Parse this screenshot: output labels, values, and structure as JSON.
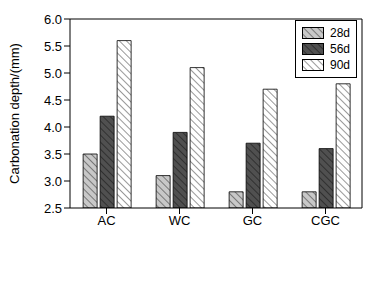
{
  "chart_data": {
    "type": "bar",
    "categories": [
      "AC",
      "WC",
      "GC",
      "CGC"
    ],
    "series": [
      {
        "name": "28d",
        "color": "#c8c8c8",
        "values": [
          3.5,
          3.1,
          2.8,
          2.8
        ]
      },
      {
        "name": "56d",
        "color": "#505050",
        "values": [
          4.2,
          3.9,
          3.7,
          3.6
        ]
      },
      {
        "name": "90d",
        "color": "#ffffff",
        "values": [
          5.6,
          5.1,
          4.7,
          4.8
        ]
      }
    ],
    "y_label": "Carbonation depth/(mm)",
    "ylim": [
      2.5,
      6.0
    ],
    "yticks": [
      2.5,
      {
        "value": 3,
        "label": "3.0"
      },
      3.5,
      {
        "value": 4,
        "label": "4.0"
      },
      4.5,
      {
        "value": 5,
        "label": "5.0"
      },
      5.5,
      {
        "value": 6,
        "label": "6.0"
      }
    ],
    "legend": "upper right",
    "grid": false
  }
}
